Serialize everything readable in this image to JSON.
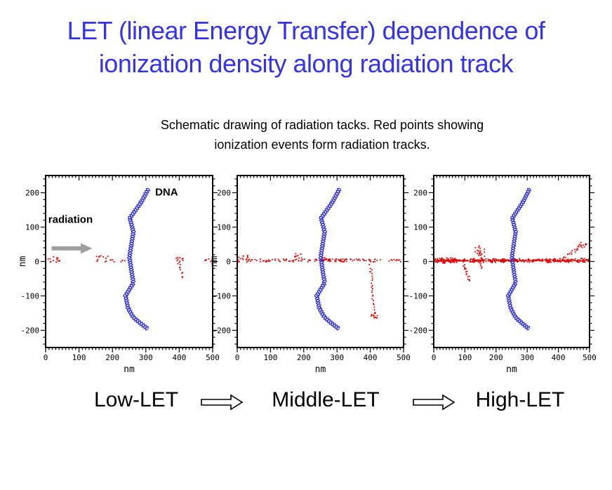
{
  "title": {
    "line1": "LET (linear Energy Transfer) dependence of",
    "line2": "ionization density along radiation track",
    "color": "#3434E6"
  },
  "subtitle": {
    "line1": "Schematic drawing of radiation tacks. Red points showing",
    "line2": "ionization events form radiation tracks."
  },
  "flow": {
    "low": "Low-LET",
    "middle": "Middle-LET",
    "high": "High-LET"
  },
  "chart_data": {
    "type": "scatter",
    "description": "Three schematic track-structure plots; blue zigzag = DNA double helix, red points = ionization events along a radiation track at y=0; ionization density increases from Low-LET to High-LET.",
    "colors": {
      "dna": "#2E2ED6",
      "ionization": "#E00000",
      "radiation_arrow": "#9E9E9E",
      "axis": "#000000"
    },
    "xlabel": "nm",
    "ylabel": "nm",
    "xlim": [
      0,
      500
    ],
    "ylim": [
      -250,
      250
    ],
    "xticks": [
      0,
      100,
      200,
      300,
      400,
      500
    ],
    "yticks": [
      -200,
      -100,
      0,
      100,
      200
    ],
    "x_minor_step": 10,
    "y_minor_step": 20,
    "dna_spine": [
      [
        308,
        212
      ],
      [
        286,
        172
      ],
      [
        252,
        126
      ],
      [
        263,
        86
      ],
      [
        256,
        46
      ],
      [
        251,
        12
      ],
      [
        257,
        -28
      ],
      [
        263,
        -62
      ],
      [
        239,
        -100
      ],
      [
        247,
        -136
      ],
      [
        262,
        -162
      ],
      [
        284,
        -180
      ],
      [
        306,
        -196
      ]
    ],
    "plots": [
      {
        "name": "Low-LET",
        "seed": 5,
        "show_ynm": true,
        "annotations": [
          {
            "text": "DNA",
            "x": 328,
            "y": 192
          },
          {
            "text": "radiation",
            "x": 8,
            "y": 112
          }
        ],
        "radiation_arrow": {
          "x0": 18,
          "x1": 105,
          "tip": 140,
          "y": 38
        },
        "ionization_segments": [
          {
            "type": "dots",
            "x0": 4,
            "x1": 46,
            "y": 6,
            "n": 14,
            "jy": 8
          },
          {
            "type": "dots",
            "x0": 138,
            "x1": 205,
            "y": 8,
            "n": 16,
            "jy": 9
          },
          {
            "type": "dots",
            "x0": 224,
            "x1": 242,
            "y": 2,
            "n": 4,
            "jy": 3
          },
          {
            "type": "dots",
            "x0": 390,
            "x1": 412,
            "y": 6,
            "n": 9,
            "jy": 7
          },
          {
            "type": "branch",
            "x0": 398,
            "y0": 0,
            "x1": 410,
            "y1": -46,
            "n": 10,
            "jx": 4,
            "jy": 4
          },
          {
            "type": "dots",
            "x0": 476,
            "x1": 500,
            "y": 4,
            "n": 7,
            "jy": 5
          }
        ]
      },
      {
        "name": "Middle-LET",
        "seed": 7,
        "show_ynm": true,
        "annotations": [],
        "ionization_segments": [
          {
            "type": "dots",
            "x0": 0,
            "x1": 500,
            "y": 3,
            "n": 110,
            "jy": 4
          },
          {
            "type": "dots",
            "x0": 0,
            "x1": 34,
            "y": 8,
            "n": 14,
            "jy": 10
          },
          {
            "type": "dots",
            "x0": 172,
            "x1": 196,
            "y": 16,
            "n": 12,
            "jy": 13
          },
          {
            "type": "dots",
            "x0": 255,
            "x1": 330,
            "y": 5,
            "n": 20,
            "jy": 6
          },
          {
            "type": "branch",
            "x0": 400,
            "y0": -4,
            "x1": 413,
            "y1": -162,
            "n": 28,
            "jx": 4,
            "jy": 5
          },
          {
            "type": "dots",
            "x0": 403,
            "x1": 421,
            "y": -158,
            "n": 9,
            "jy": 9
          }
        ]
      },
      {
        "name": "High-LET",
        "seed": 9,
        "show_ynm": false,
        "annotations": [],
        "ionization_segments": [
          {
            "type": "dots",
            "x0": 0,
            "x1": 500,
            "y": 3,
            "n": 260,
            "jy": 2
          },
          {
            "type": "dots",
            "x0": 0,
            "x1": 500,
            "y": 3,
            "n": 200,
            "jy": 6
          },
          {
            "type": "dots",
            "x0": 0,
            "x1": 60,
            "y": 3,
            "n": 40,
            "jy": 8
          },
          {
            "type": "branch",
            "x0": 96,
            "y0": -4,
            "x1": 114,
            "y1": -56,
            "n": 16,
            "jx": 4,
            "jy": 4
          },
          {
            "type": "branch",
            "x0": 148,
            "y0": 42,
            "x1": 152,
            "y1": -18,
            "n": 18,
            "jx": 5,
            "jy": 5
          },
          {
            "type": "dots",
            "x0": 128,
            "x1": 164,
            "y": 26,
            "n": 16,
            "jy": 16
          },
          {
            "type": "branch",
            "x0": 420,
            "y0": 10,
            "x1": 476,
            "y1": 50,
            "n": 18,
            "jx": 5,
            "jy": 4
          },
          {
            "type": "dots",
            "x0": 462,
            "x1": 492,
            "y": 48,
            "n": 9,
            "jy": 8
          }
        ]
      }
    ]
  }
}
